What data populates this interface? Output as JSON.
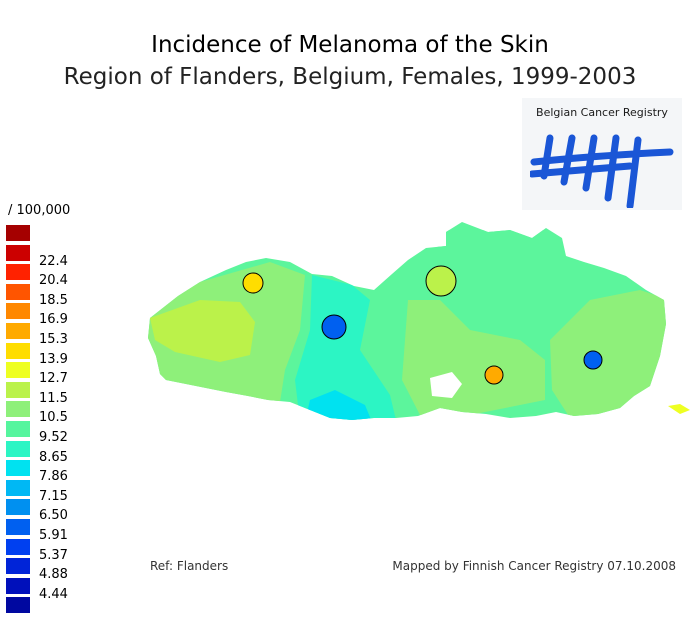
{
  "title": "Incidence of Melanoma of the Skin",
  "subtitle": "Region of Flanders, Belgium, Females, 1999-2003",
  "logo": {
    "text": "Belgian Cancer Registry",
    "mark": "tally-marks-logo",
    "color": "#1a56d6"
  },
  "legend": {
    "unit": "/ 100,000",
    "items": [
      {
        "label": "",
        "color": "#a50000"
      },
      {
        "label": "22.4",
        "color": "#cc0000"
      },
      {
        "label": "20.4",
        "color": "#ff2200"
      },
      {
        "label": "18.5",
        "color": "#ff5500"
      },
      {
        "label": "16.9",
        "color": "#ff8800"
      },
      {
        "label": "15.3",
        "color": "#ffaa00"
      },
      {
        "label": "13.9",
        "color": "#ffdd00"
      },
      {
        "label": "12.7",
        "color": "#eeff22"
      },
      {
        "label": "11.5",
        "color": "#bbf24a"
      },
      {
        "label": "10.5",
        "color": "#8ef07a"
      },
      {
        "label": "9.52",
        "color": "#55f59e"
      },
      {
        "label": "8.65",
        "color": "#2cf5c4"
      },
      {
        "label": "7.86",
        "color": "#00e2f0"
      },
      {
        "label": "7.15",
        "color": "#00b8f4"
      },
      {
        "label": "6.50",
        "color": "#0090f0"
      },
      {
        "label": "5.91",
        "color": "#0060f0"
      },
      {
        "label": "5.37",
        "color": "#0040f0"
      },
      {
        "label": "4.88",
        "color": "#0024d8"
      },
      {
        "label": "4.44",
        "color": "#0010bb"
      },
      {
        "label": "",
        "color": "#0008a0"
      }
    ]
  },
  "map": {
    "region_colors": {
      "base": "#5cf59c",
      "west": "#8ef07a",
      "west_core": "#bbf24a",
      "central": "#2cf5c4",
      "central_low": "#00e2f0",
      "east": "#8ef07a",
      "north_east": "#5cf59c"
    },
    "markers": [
      {
        "name": "marker-west",
        "color": "#ffdd00"
      },
      {
        "name": "marker-central",
        "color": "#0060f0"
      },
      {
        "name": "marker-north",
        "color": "#bbf24a"
      },
      {
        "name": "marker-south",
        "color": "#ffaa00"
      },
      {
        "name": "marker-east",
        "color": "#0060f0"
      }
    ]
  },
  "footer": {
    "ref": "Ref: Flanders",
    "mapped_by": "Mapped by Finnish Cancer Registry 07.10.2008"
  }
}
